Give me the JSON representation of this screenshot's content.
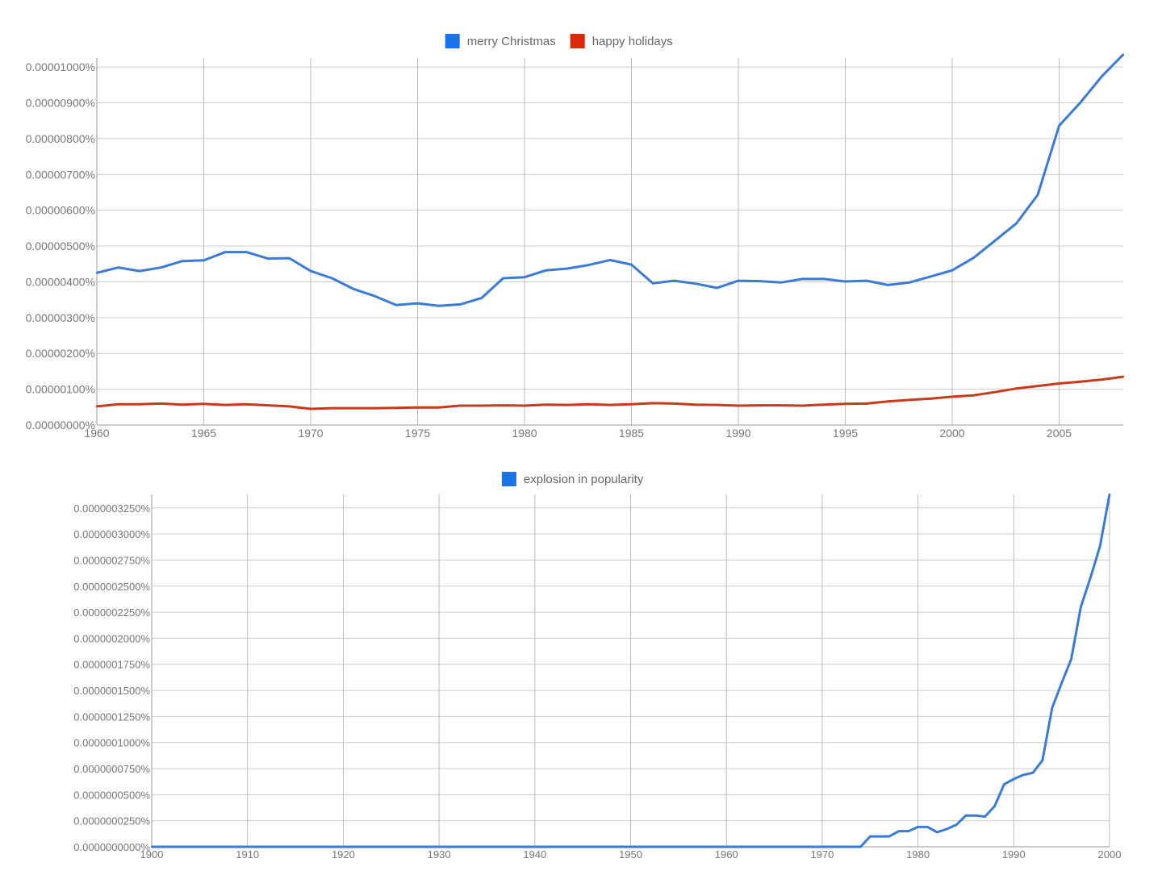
{
  "chart_data": [
    {
      "type": "line",
      "x_ticks": [
        1960,
        1965,
        1970,
        1975,
        1980,
        1985,
        1990,
        1995,
        2000,
        2005
      ],
      "xlim": [
        1960,
        2008
      ],
      "ylim": [
        0,
        1.025e-05
      ],
      "y_ticks": [
        {
          "value": 0.0,
          "label": "0.00000000%"
        },
        {
          "value": 1e-06,
          "label": "0.00000100%"
        },
        {
          "value": 2e-06,
          "label": "0.00000200%"
        },
        {
          "value": 3e-06,
          "label": "0.00000300%"
        },
        {
          "value": 4e-06,
          "label": "0.00000400%"
        },
        {
          "value": 5e-06,
          "label": "0.00000500%"
        },
        {
          "value": 6e-06,
          "label": "0.00000600%"
        },
        {
          "value": 7e-06,
          "label": "0.00000700%"
        },
        {
          "value": 8e-06,
          "label": "0.00000800%"
        },
        {
          "value": 9e-06,
          "label": "0.00000900%"
        },
        {
          "value": 1e-05,
          "label": "0.00001000%"
        }
      ],
      "grid": true,
      "legend_position": "top-center",
      "x": [
        1960,
        1961,
        1962,
        1963,
        1964,
        1965,
        1966,
        1967,
        1968,
        1969,
        1970,
        1971,
        1972,
        1973,
        1974,
        1975,
        1976,
        1977,
        1978,
        1979,
        1980,
        1981,
        1982,
        1983,
        1984,
        1985,
        1986,
        1987,
        1988,
        1989,
        1990,
        1991,
        1992,
        1993,
        1994,
        1995,
        1996,
        1997,
        1998,
        1999,
        2000,
        2001,
        2002,
        2003,
        2004,
        2005,
        2006,
        2007,
        2008
      ],
      "series": [
        {
          "name": "merry Christmas",
          "color": "#3a7bd5",
          "legend_color": "#1a73e8",
          "values": [
            4.25e-06,
            4.4e-06,
            4.3e-06,
            4.4e-06,
            4.58e-06,
            4.6e-06,
            4.83e-06,
            4.83e-06,
            4.65e-06,
            4.66e-06,
            4.3e-06,
            4.1e-06,
            3.8e-06,
            3.6e-06,
            3.35e-06,
            3.4e-06,
            3.33e-06,
            3.37e-06,
            3.55e-06,
            4.1e-06,
            4.13e-06,
            4.32e-06,
            4.37e-06,
            4.47e-06,
            4.61e-06,
            4.48e-06,
            3.96e-06,
            4.03e-06,
            3.95e-06,
            3.83e-06,
            4.03e-06,
            4.02e-06,
            3.98e-06,
            4.08e-06,
            4.08e-06,
            4.01e-06,
            4.03e-06,
            3.91e-06,
            3.98e-06,
            4.15e-06,
            4.32e-06,
            4.67e-06,
            5.15e-06,
            5.63e-06,
            6.43e-06,
            8.36e-06,
            9.01e-06,
            9.74e-06,
            1.035e-05
          ]
        },
        {
          "name": "happy holidays",
          "color": "#c83a1a",
          "legend_color": "#dc2a0a",
          "values": [
            5.2e-07,
            5.8e-07,
            5.8e-07,
            6e-07,
            5.7e-07,
            5.9e-07,
            5.6e-07,
            5.8e-07,
            5.5e-07,
            5.2e-07,
            4.5e-07,
            4.7e-07,
            4.7e-07,
            4.7e-07,
            4.8e-07,
            4.9e-07,
            4.9e-07,
            5.4e-07,
            5.4e-07,
            5.5e-07,
            5.4e-07,
            5.7e-07,
            5.6e-07,
            5.8e-07,
            5.6e-07,
            5.8e-07,
            6.1e-07,
            6e-07,
            5.7e-07,
            5.6e-07,
            5.4e-07,
            5.5e-07,
            5.5e-07,
            5.4e-07,
            5.7e-07,
            5.9e-07,
            6e-07,
            6.6e-07,
            7e-07,
            7.4e-07,
            7.9e-07,
            8.3e-07,
            9.2e-07,
            1.02e-06,
            1.09e-06,
            1.16e-06,
            1.21e-06,
            1.27e-06,
            1.35e-06
          ]
        }
      ]
    },
    {
      "type": "line",
      "x_ticks": [
        1900,
        1910,
        1920,
        1930,
        1940,
        1950,
        1960,
        1970,
        1980,
        1990,
        2000
      ],
      "xlim": [
        1900,
        2000
      ],
      "ylim": [
        0,
        3.38e-08
      ],
      "y_ticks": [
        {
          "value": 0.0,
          "label": "0.0000000000%"
        },
        {
          "value": 2.5e-09,
          "label": "0.0000000250%"
        },
        {
          "value": 5e-09,
          "label": "0.0000000500%"
        },
        {
          "value": 7.5e-09,
          "label": "0.0000000750%"
        },
        {
          "value": 1e-08,
          "label": "0.0000001000%"
        },
        {
          "value": 1.25e-08,
          "label": "0.0000001250%"
        },
        {
          "value": 1.5e-08,
          "label": "0.0000001500%"
        },
        {
          "value": 1.75e-08,
          "label": "0.0000001750%"
        },
        {
          "value": 2e-08,
          "label": "0.0000002000%"
        },
        {
          "value": 2.25e-08,
          "label": "0.0000002250%"
        },
        {
          "value": 2.5e-08,
          "label": "0.0000002500%"
        },
        {
          "value": 2.75e-08,
          "label": "0.0000002750%"
        },
        {
          "value": 3e-08,
          "label": "0.0000003000%"
        },
        {
          "value": 3.25e-08,
          "label": "0.0000003250%"
        }
      ],
      "grid": true,
      "legend_position": "top-center",
      "x": [
        1900,
        1974,
        1975,
        1976,
        1977,
        1978,
        1979,
        1980,
        1981,
        1982,
        1983,
        1984,
        1985,
        1986,
        1987,
        1988,
        1989,
        1990,
        1991,
        1992,
        1993,
        1994,
        1995,
        1996,
        1997,
        1998,
        1999,
        2000
      ],
      "series": [
        {
          "name": "explosion in popularity",
          "color": "#3a7bd5",
          "legend_color": "#1a73e8",
          "values": [
            0,
            0,
            1e-09,
            1e-09,
            1e-09,
            1.5e-09,
            1.5e-09,
            1.9e-09,
            1.9e-09,
            1.4e-09,
            1.7e-09,
            2.1e-09,
            3e-09,
            3e-09,
            2.9e-09,
            3.9e-09,
            6e-09,
            6.5e-09,
            6.9e-09,
            7.1e-09,
            8.3e-09,
            1.33e-08,
            1.57e-08,
            1.8e-08,
            2.3e-08,
            2.58e-08,
            2.88e-08,
            3.38e-08
          ]
        }
      ]
    }
  ]
}
